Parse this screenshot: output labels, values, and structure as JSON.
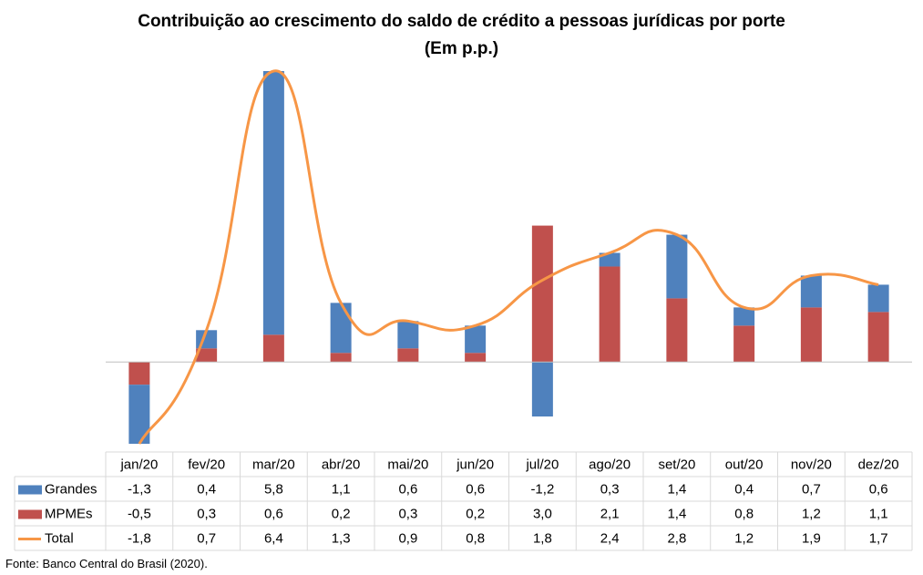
{
  "title": "Contribuição ao crescimento do saldo de crédito a pessoas jurídicas por porte",
  "subtitle": "(Em p.p.)",
  "source": "Fonte: Banco Central do Brasil (2020).",
  "colors": {
    "grandes": "#4f81bd",
    "mpmes": "#c0504d",
    "total": "#f79646"
  },
  "chart_data": {
    "type": "bar",
    "stacked": true,
    "title": "Contribuição ao crescimento do saldo de crédito a pessoas jurídicas por porte",
    "subtitle": "(Em p.p.)",
    "categories": [
      "jan/20",
      "fev/20",
      "mar/20",
      "abr/20",
      "mai/20",
      "jun/20",
      "jul/20",
      "ago/20",
      "set/20",
      "out/20",
      "nov/20",
      "dez/20"
    ],
    "series": [
      {
        "name": "Grandes",
        "type": "bar",
        "color": "#4f81bd",
        "values": [
          -1.3,
          0.4,
          5.8,
          1.1,
          0.6,
          0.6,
          -1.2,
          0.3,
          1.4,
          0.4,
          0.7,
          0.6
        ],
        "labels": [
          "-1,3",
          "0,4",
          "5,8",
          "1,1",
          "0,6",
          "0,6",
          "-1,2",
          "0,3",
          "1,4",
          "0,4",
          "0,7",
          "0,6"
        ]
      },
      {
        "name": "MPMEs",
        "type": "bar",
        "color": "#c0504d",
        "values": [
          -0.5,
          0.3,
          0.6,
          0.2,
          0.3,
          0.2,
          3.0,
          2.1,
          1.4,
          0.8,
          1.2,
          1.1
        ],
        "labels": [
          "-0,5",
          "0,3",
          "0,6",
          "0,2",
          "0,3",
          "0,2",
          "3,0",
          "2,1",
          "1,4",
          "0,8",
          "1,2",
          "1,1"
        ]
      },
      {
        "name": "Total",
        "type": "line",
        "color": "#f79646",
        "values": [
          -1.8,
          0.7,
          6.4,
          1.3,
          0.9,
          0.8,
          1.8,
          2.4,
          2.8,
          1.2,
          1.9,
          1.7
        ],
        "labels": [
          "-1,8",
          "0,7",
          "6,4",
          "1,3",
          "0,9",
          "0,8",
          "1,8",
          "2,4",
          "2,8",
          "1,2",
          "1,9",
          "1,7"
        ]
      }
    ],
    "ylim": [
      -1.8,
      6.4
    ],
    "grid": false,
    "legend": "data-table"
  }
}
